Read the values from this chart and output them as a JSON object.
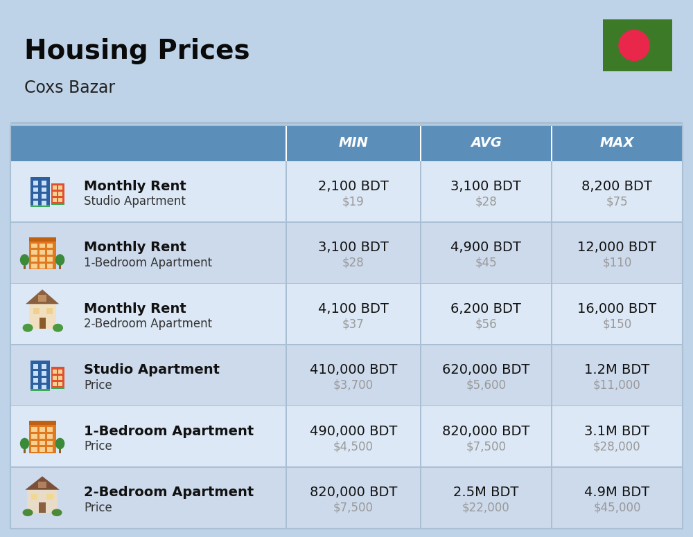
{
  "title": "Housing Prices",
  "subtitle": "Coxs Bazar",
  "bg_color": "#bed3e8",
  "header_bg": "#5b8fba",
  "row_bg_even": "#dce8f5",
  "row_bg_odd": "#cddaec",
  "divider_color": "#a8bfd4",
  "flag_green": "#3d7a28",
  "flag_red": "#e8274b",
  "col_text": "#ffffff",
  "label_bold_color": "#111111",
  "label_sub_color": "#333333",
  "value_bdt_color": "#111111",
  "value_usd_color": "#999999",
  "columns": [
    "MIN",
    "AVG",
    "MAX"
  ],
  "rows": [
    {
      "icon": "studio_blue",
      "label_bold": "Monthly Rent",
      "label_sub": "Studio Apartment",
      "values": [
        [
          "2,100 BDT",
          "$19"
        ],
        [
          "3,100 BDT",
          "$28"
        ],
        [
          "8,200 BDT",
          "$75"
        ]
      ]
    },
    {
      "icon": "apartment_orange",
      "label_bold": "Monthly Rent",
      "label_sub": "1-Bedroom Apartment",
      "values": [
        [
          "3,100 BDT",
          "$28"
        ],
        [
          "4,900 BDT",
          "$45"
        ],
        [
          "12,000 BDT",
          "$110"
        ]
      ]
    },
    {
      "icon": "house_tan",
      "label_bold": "Monthly Rent",
      "label_sub": "2-Bedroom Apartment",
      "values": [
        [
          "4,100 BDT",
          "$37"
        ],
        [
          "6,200 BDT",
          "$56"
        ],
        [
          "16,000 BDT",
          "$150"
        ]
      ]
    },
    {
      "icon": "studio_blue",
      "label_bold": "Studio Apartment",
      "label_sub": "Price",
      "values": [
        [
          "410,000 BDT",
          "$3,700"
        ],
        [
          "620,000 BDT",
          "$5,600"
        ],
        [
          "1.2M BDT",
          "$11,000"
        ]
      ]
    },
    {
      "icon": "apartment_orange",
      "label_bold": "1-Bedroom Apartment",
      "label_sub": "Price",
      "values": [
        [
          "490,000 BDT",
          "$4,500"
        ],
        [
          "820,000 BDT",
          "$7,500"
        ],
        [
          "3.1M BDT",
          "$28,000"
        ]
      ]
    },
    {
      "icon": "house_brown",
      "label_bold": "2-Bedroom Apartment",
      "label_sub": "Price",
      "values": [
        [
          "820,000 BDT",
          "$7,500"
        ],
        [
          "2.5M BDT",
          "$22,000"
        ],
        [
          "4.9M BDT",
          "$45,000"
        ]
      ]
    }
  ]
}
